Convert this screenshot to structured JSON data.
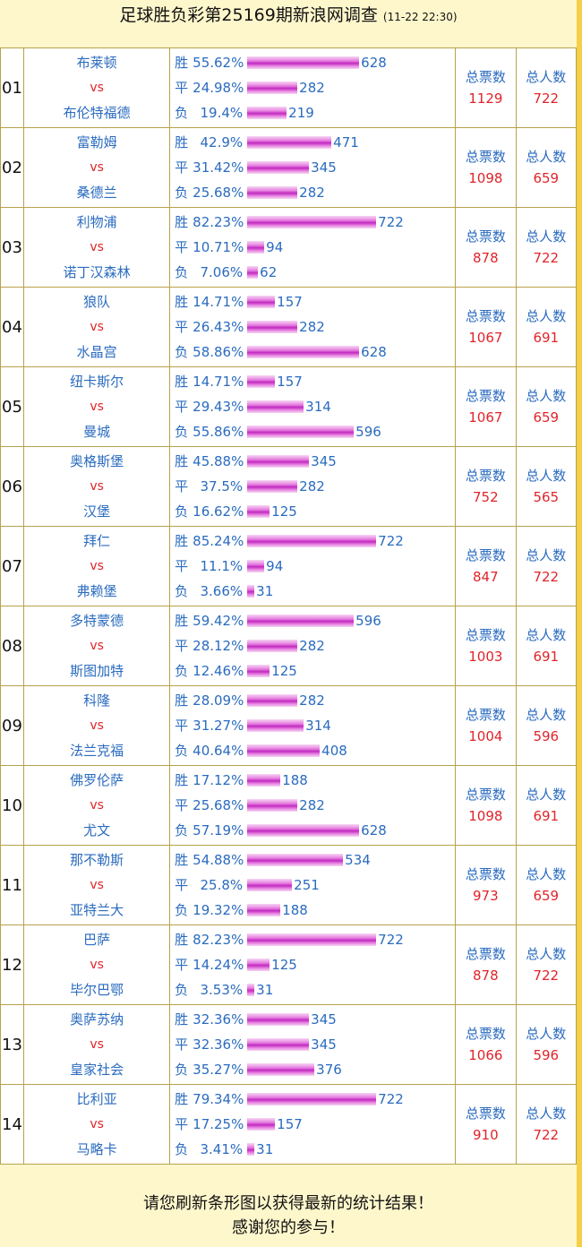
{
  "header": {
    "title": "足球胜负彩第25169期新浪网调查",
    "time": "(11-22 22:30)"
  },
  "labels": {
    "win": "胜",
    "draw": "平",
    "lose": "负",
    "vs": "vs",
    "total_votes": "总票数",
    "total_people": "总人数"
  },
  "matches": [
    {
      "num": "01",
      "home": "布莱顿",
      "away": "布伦特福德",
      "win": {
        "pct": "55.62%",
        "count": 628
      },
      "draw": {
        "pct": "24.98%",
        "count": 282
      },
      "lose": {
        "pct": "19.4%",
        "count": 219
      },
      "total_votes": "1129",
      "total_people": "722"
    },
    {
      "num": "02",
      "home": "富勒姆",
      "away": "桑德兰",
      "win": {
        "pct": "42.9%",
        "count": 471
      },
      "draw": {
        "pct": "31.42%",
        "count": 345
      },
      "lose": {
        "pct": "25.68%",
        "count": 282
      },
      "total_votes": "1098",
      "total_people": "659"
    },
    {
      "num": "03",
      "home": "利物浦",
      "away": "诺丁汉森林",
      "win": {
        "pct": "82.23%",
        "count": 722
      },
      "draw": {
        "pct": "10.71%",
        "count": 94
      },
      "lose": {
        "pct": "7.06%",
        "count": 62
      },
      "total_votes": "878",
      "total_people": "722"
    },
    {
      "num": "04",
      "home": "狼队",
      "away": "水晶宫",
      "win": {
        "pct": "14.71%",
        "count": 157
      },
      "draw": {
        "pct": "26.43%",
        "count": 282
      },
      "lose": {
        "pct": "58.86%",
        "count": 628
      },
      "total_votes": "1067",
      "total_people": "691"
    },
    {
      "num": "05",
      "home": "纽卡斯尔",
      "away": "曼城",
      "win": {
        "pct": "14.71%",
        "count": 157
      },
      "draw": {
        "pct": "29.43%",
        "count": 314
      },
      "lose": {
        "pct": "55.86%",
        "count": 596
      },
      "total_votes": "1067",
      "total_people": "659"
    },
    {
      "num": "06",
      "home": "奥格斯堡",
      "away": "汉堡",
      "win": {
        "pct": "45.88%",
        "count": 345
      },
      "draw": {
        "pct": "37.5%",
        "count": 282
      },
      "lose": {
        "pct": "16.62%",
        "count": 125
      },
      "total_votes": "752",
      "total_people": "565"
    },
    {
      "num": "07",
      "home": "拜仁",
      "away": "弗赖堡",
      "win": {
        "pct": "85.24%",
        "count": 722
      },
      "draw": {
        "pct": "11.1%",
        "count": 94
      },
      "lose": {
        "pct": "3.66%",
        "count": 31
      },
      "total_votes": "847",
      "total_people": "722"
    },
    {
      "num": "08",
      "home": "多特蒙德",
      "away": "斯图加特",
      "win": {
        "pct": "59.42%",
        "count": 596
      },
      "draw": {
        "pct": "28.12%",
        "count": 282
      },
      "lose": {
        "pct": "12.46%",
        "count": 125
      },
      "total_votes": "1003",
      "total_people": "691"
    },
    {
      "num": "09",
      "home": "科隆",
      "away": "法兰克福",
      "win": {
        "pct": "28.09%",
        "count": 282
      },
      "draw": {
        "pct": "31.27%",
        "count": 314
      },
      "lose": {
        "pct": "40.64%",
        "count": 408
      },
      "total_votes": "1004",
      "total_people": "596"
    },
    {
      "num": "10",
      "home": "佛罗伦萨",
      "away": "尤文",
      "win": {
        "pct": "17.12%",
        "count": 188
      },
      "draw": {
        "pct": "25.68%",
        "count": 282
      },
      "lose": {
        "pct": "57.19%",
        "count": 628
      },
      "total_votes": "1098",
      "total_people": "691"
    },
    {
      "num": "11",
      "home": "那不勒斯",
      "away": "亚特兰大",
      "win": {
        "pct": "54.88%",
        "count": 534
      },
      "draw": {
        "pct": "25.8%",
        "count": 251
      },
      "lose": {
        "pct": "19.32%",
        "count": 188
      },
      "total_votes": "973",
      "total_people": "659"
    },
    {
      "num": "12",
      "home": "巴萨",
      "away": "毕尔巴鄂",
      "win": {
        "pct": "82.23%",
        "count": 722
      },
      "draw": {
        "pct": "14.24%",
        "count": 125
      },
      "lose": {
        "pct": "3.53%",
        "count": 31
      },
      "total_votes": "878",
      "total_people": "722"
    },
    {
      "num": "13",
      "home": "奥萨苏纳",
      "away": "皇家社会",
      "win": {
        "pct": "32.36%",
        "count": 345
      },
      "draw": {
        "pct": "32.36%",
        "count": 345
      },
      "lose": {
        "pct": "35.27%",
        "count": 376
      },
      "total_votes": "1066",
      "total_people": "596"
    },
    {
      "num": "14",
      "home": "比利亚",
      "away": "马略卡",
      "win": {
        "pct": "79.34%",
        "count": 722
      },
      "draw": {
        "pct": "17.25%",
        "count": 157
      },
      "lose": {
        "pct": "3.41%",
        "count": 31
      },
      "total_votes": "910",
      "total_people": "722"
    }
  ],
  "footer": {
    "line1": "请您刷新条形图以获得最新的统计结果！",
    "line2": "感谢您的参与！"
  }
}
